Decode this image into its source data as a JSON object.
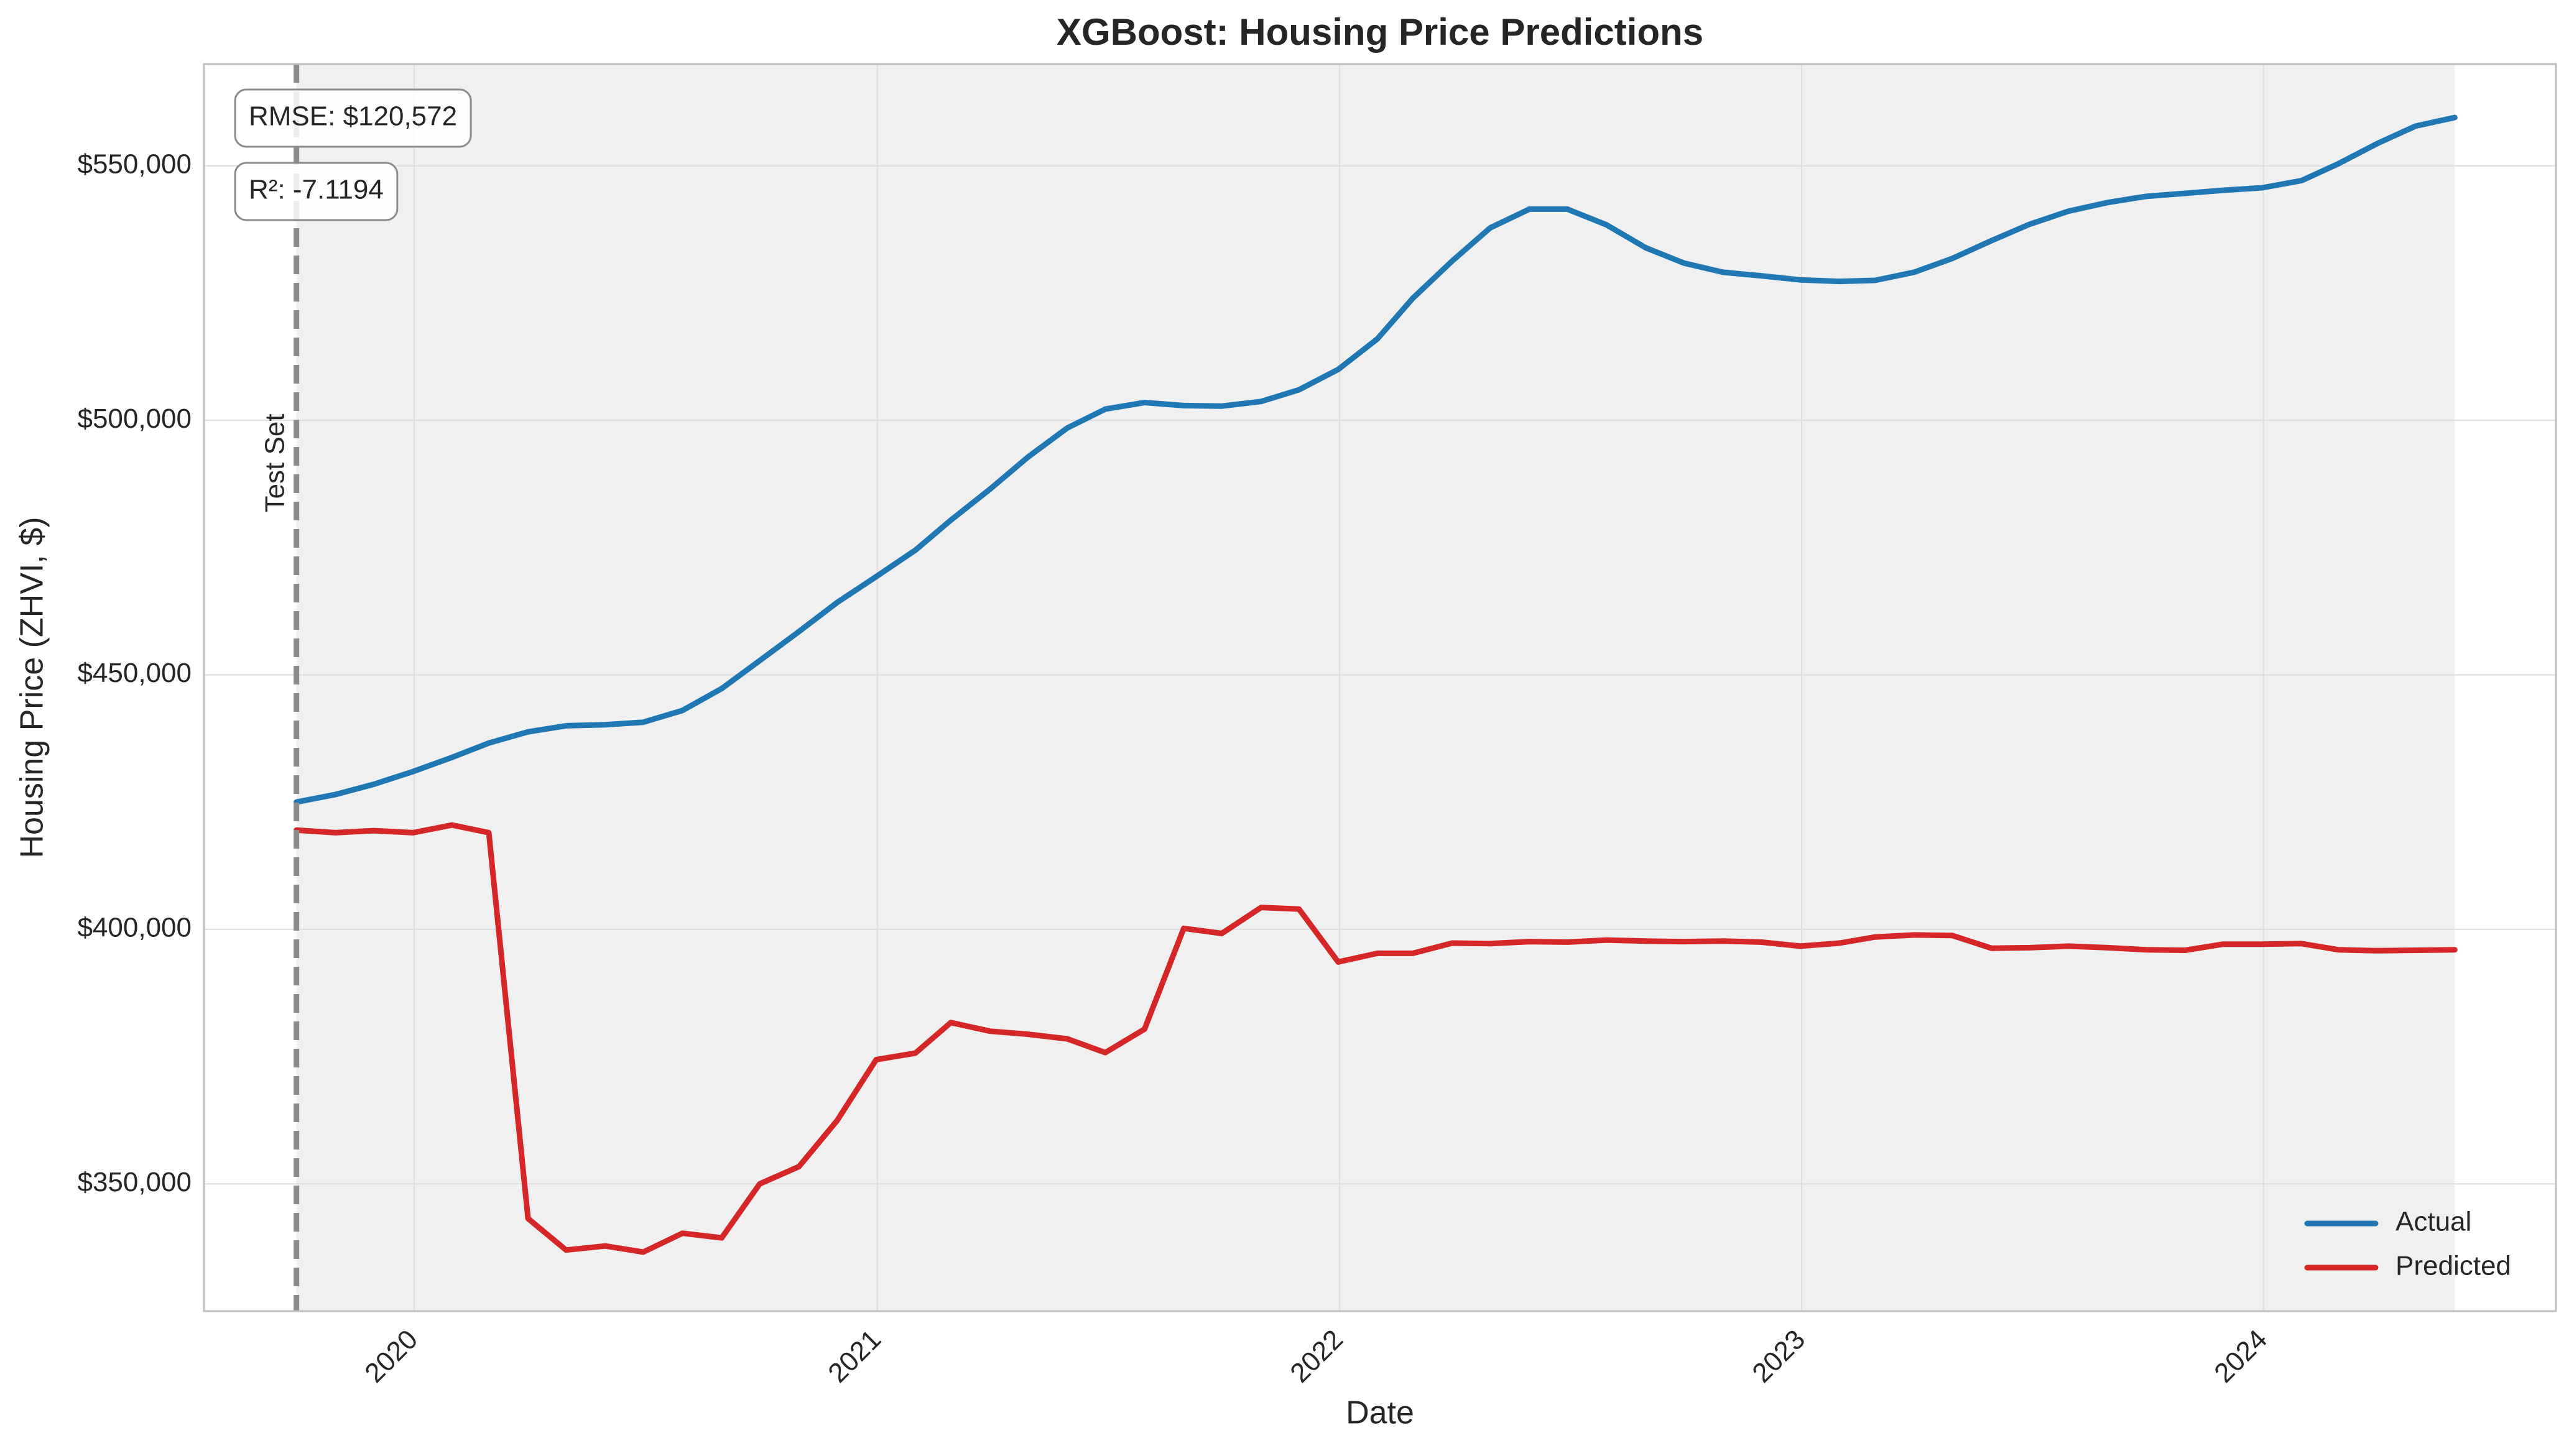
{
  "chart_data": {
    "type": "line",
    "title": "XGBoost: Housing Price Predictions",
    "xlabel": "Date",
    "ylabel": "Housing Price (ZHVI, $)",
    "xlim": [
      "2019-07-19",
      "2024-08-19"
    ],
    "ylim": [
      325000,
      570000
    ],
    "x_ticks": [
      "2020-01-01",
      "2021-01-01",
      "2022-01-01",
      "2023-01-01",
      "2024-01-01"
    ],
    "x_tick_labels": [
      "2020",
      "2021",
      "2022",
      "2023",
      "2024"
    ],
    "y_ticks": [
      350000,
      400000,
      450000,
      500000,
      550000
    ],
    "y_tick_labels": [
      "$350,000",
      "$400,000",
      "$450,000",
      "$500,000",
      "$550,000"
    ],
    "grid": true,
    "legend_position": "bottom-right",
    "shaded_region": {
      "start": "2019-09-30",
      "end": "2024-05-31"
    },
    "vline": {
      "x": "2019-09-30",
      "label": "Test Set"
    },
    "annotations": [
      "RMSE: $120,572",
      "R²: -7.1194"
    ],
    "x": [
      "2019-09-30",
      "2019-10-31",
      "2019-11-30",
      "2019-12-31",
      "2020-01-31",
      "2020-02-29",
      "2020-03-31",
      "2020-04-30",
      "2020-05-31",
      "2020-06-30",
      "2020-07-31",
      "2020-08-31",
      "2020-09-30",
      "2020-10-31",
      "2020-11-30",
      "2020-12-31",
      "2021-01-31",
      "2021-02-28",
      "2021-03-31",
      "2021-04-30",
      "2021-05-31",
      "2021-06-30",
      "2021-07-31",
      "2021-08-31",
      "2021-09-30",
      "2021-10-31",
      "2021-11-30",
      "2021-12-31",
      "2022-01-31",
      "2022-02-28",
      "2022-03-31",
      "2022-04-30",
      "2022-05-31",
      "2022-06-30",
      "2022-07-31",
      "2022-08-31",
      "2022-09-30",
      "2022-10-31",
      "2022-11-30",
      "2022-12-31",
      "2023-01-31",
      "2023-02-28",
      "2023-03-31",
      "2023-04-30",
      "2023-05-31",
      "2023-06-30",
      "2023-07-31",
      "2023-08-31",
      "2023-09-30",
      "2023-10-31",
      "2023-11-30",
      "2023-12-31",
      "2024-01-31",
      "2024-02-29",
      "2024-03-31",
      "2024-04-30",
      "2024-05-31"
    ],
    "series": [
      {
        "name": "Actual",
        "color": "#1f77b4",
        "values": [
          425000,
          426500,
          428500,
          431000,
          433800,
          436600,
          438800,
          440000,
          440200,
          440700,
          443000,
          447300,
          452800,
          458500,
          464200,
          469300,
          474500,
          480400,
          486500,
          492800,
          498500,
          502200,
          503500,
          502900,
          502800,
          503700,
          506000,
          510000,
          516000,
          524000,
          531300,
          537800,
          541500,
          541500,
          538400,
          533900,
          530900,
          529100,
          528400,
          527600,
          527300,
          527500,
          529100,
          531800,
          535300,
          538500,
          541100,
          542800,
          544000,
          544600,
          545200,
          545700,
          547100,
          550400,
          554400,
          557800,
          559500
        ]
      },
      {
        "name": "Predicted",
        "color": "#d62728",
        "values": [
          419500,
          419000,
          419400,
          419000,
          420500,
          419000,
          343200,
          337000,
          337800,
          336600,
          340300,
          339400,
          350000,
          353400,
          362400,
          374400,
          375700,
          381700,
          380000,
          379400,
          378500,
          375800,
          380400,
          400200,
          399200,
          404300,
          404000,
          393600,
          395300,
          395300,
          397300,
          397200,
          397600,
          397500,
          397900,
          397700,
          397600,
          397700,
          397500,
          396700,
          397300,
          398500,
          398900,
          398800,
          396300,
          396400,
          396700,
          396400,
          396000,
          395900,
          397100,
          397100,
          397200,
          396000,
          395800,
          395900,
          396000
        ]
      }
    ]
  }
}
